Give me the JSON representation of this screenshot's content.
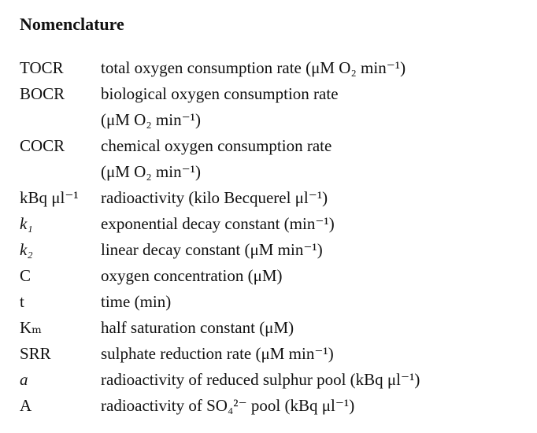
{
  "header": {
    "title": "Nomenclature"
  },
  "entries": [
    {
      "symbol": "TOCR",
      "definition": [
        "total oxygen consumption rate (μM O₂ min⁻¹)"
      ]
    },
    {
      "symbol": "BOCR",
      "definition": [
        "biological oxygen consumption rate",
        "(μM O₂ min⁻¹)"
      ]
    },
    {
      "symbol": "COCR",
      "definition": [
        "chemical oxygen consumption rate",
        "(μM O₂ min⁻¹)"
      ]
    },
    {
      "symbol": "kBq μl⁻¹",
      "definition": [
        "radioactivity (kilo Becquerel μl⁻¹)"
      ]
    },
    {
      "symbol": "k₁",
      "italic": true,
      "definition": [
        "exponential decay constant (min⁻¹)"
      ]
    },
    {
      "symbol": "k₂",
      "italic": true,
      "definition": [
        "linear decay constant (μM min⁻¹)"
      ]
    },
    {
      "symbol": "C",
      "definition": [
        "oxygen concentration (μM)"
      ]
    },
    {
      "symbol": "t",
      "definition": [
        "time (min)"
      ]
    },
    {
      "symbol": "Kₘ",
      "definition": [
        "half saturation constant (μM)"
      ]
    },
    {
      "symbol": "SRR",
      "definition": [
        "sulphate reduction rate (μM min⁻¹)"
      ]
    },
    {
      "symbol": "a",
      "italic": true,
      "definition": [
        "radioactivity of reduced sulphur pool (kBq μl⁻¹)"
      ]
    },
    {
      "symbol": "A",
      "definition": [
        "radioactivity of SO₄²⁻ pool (kBq μl⁻¹)"
      ]
    }
  ]
}
